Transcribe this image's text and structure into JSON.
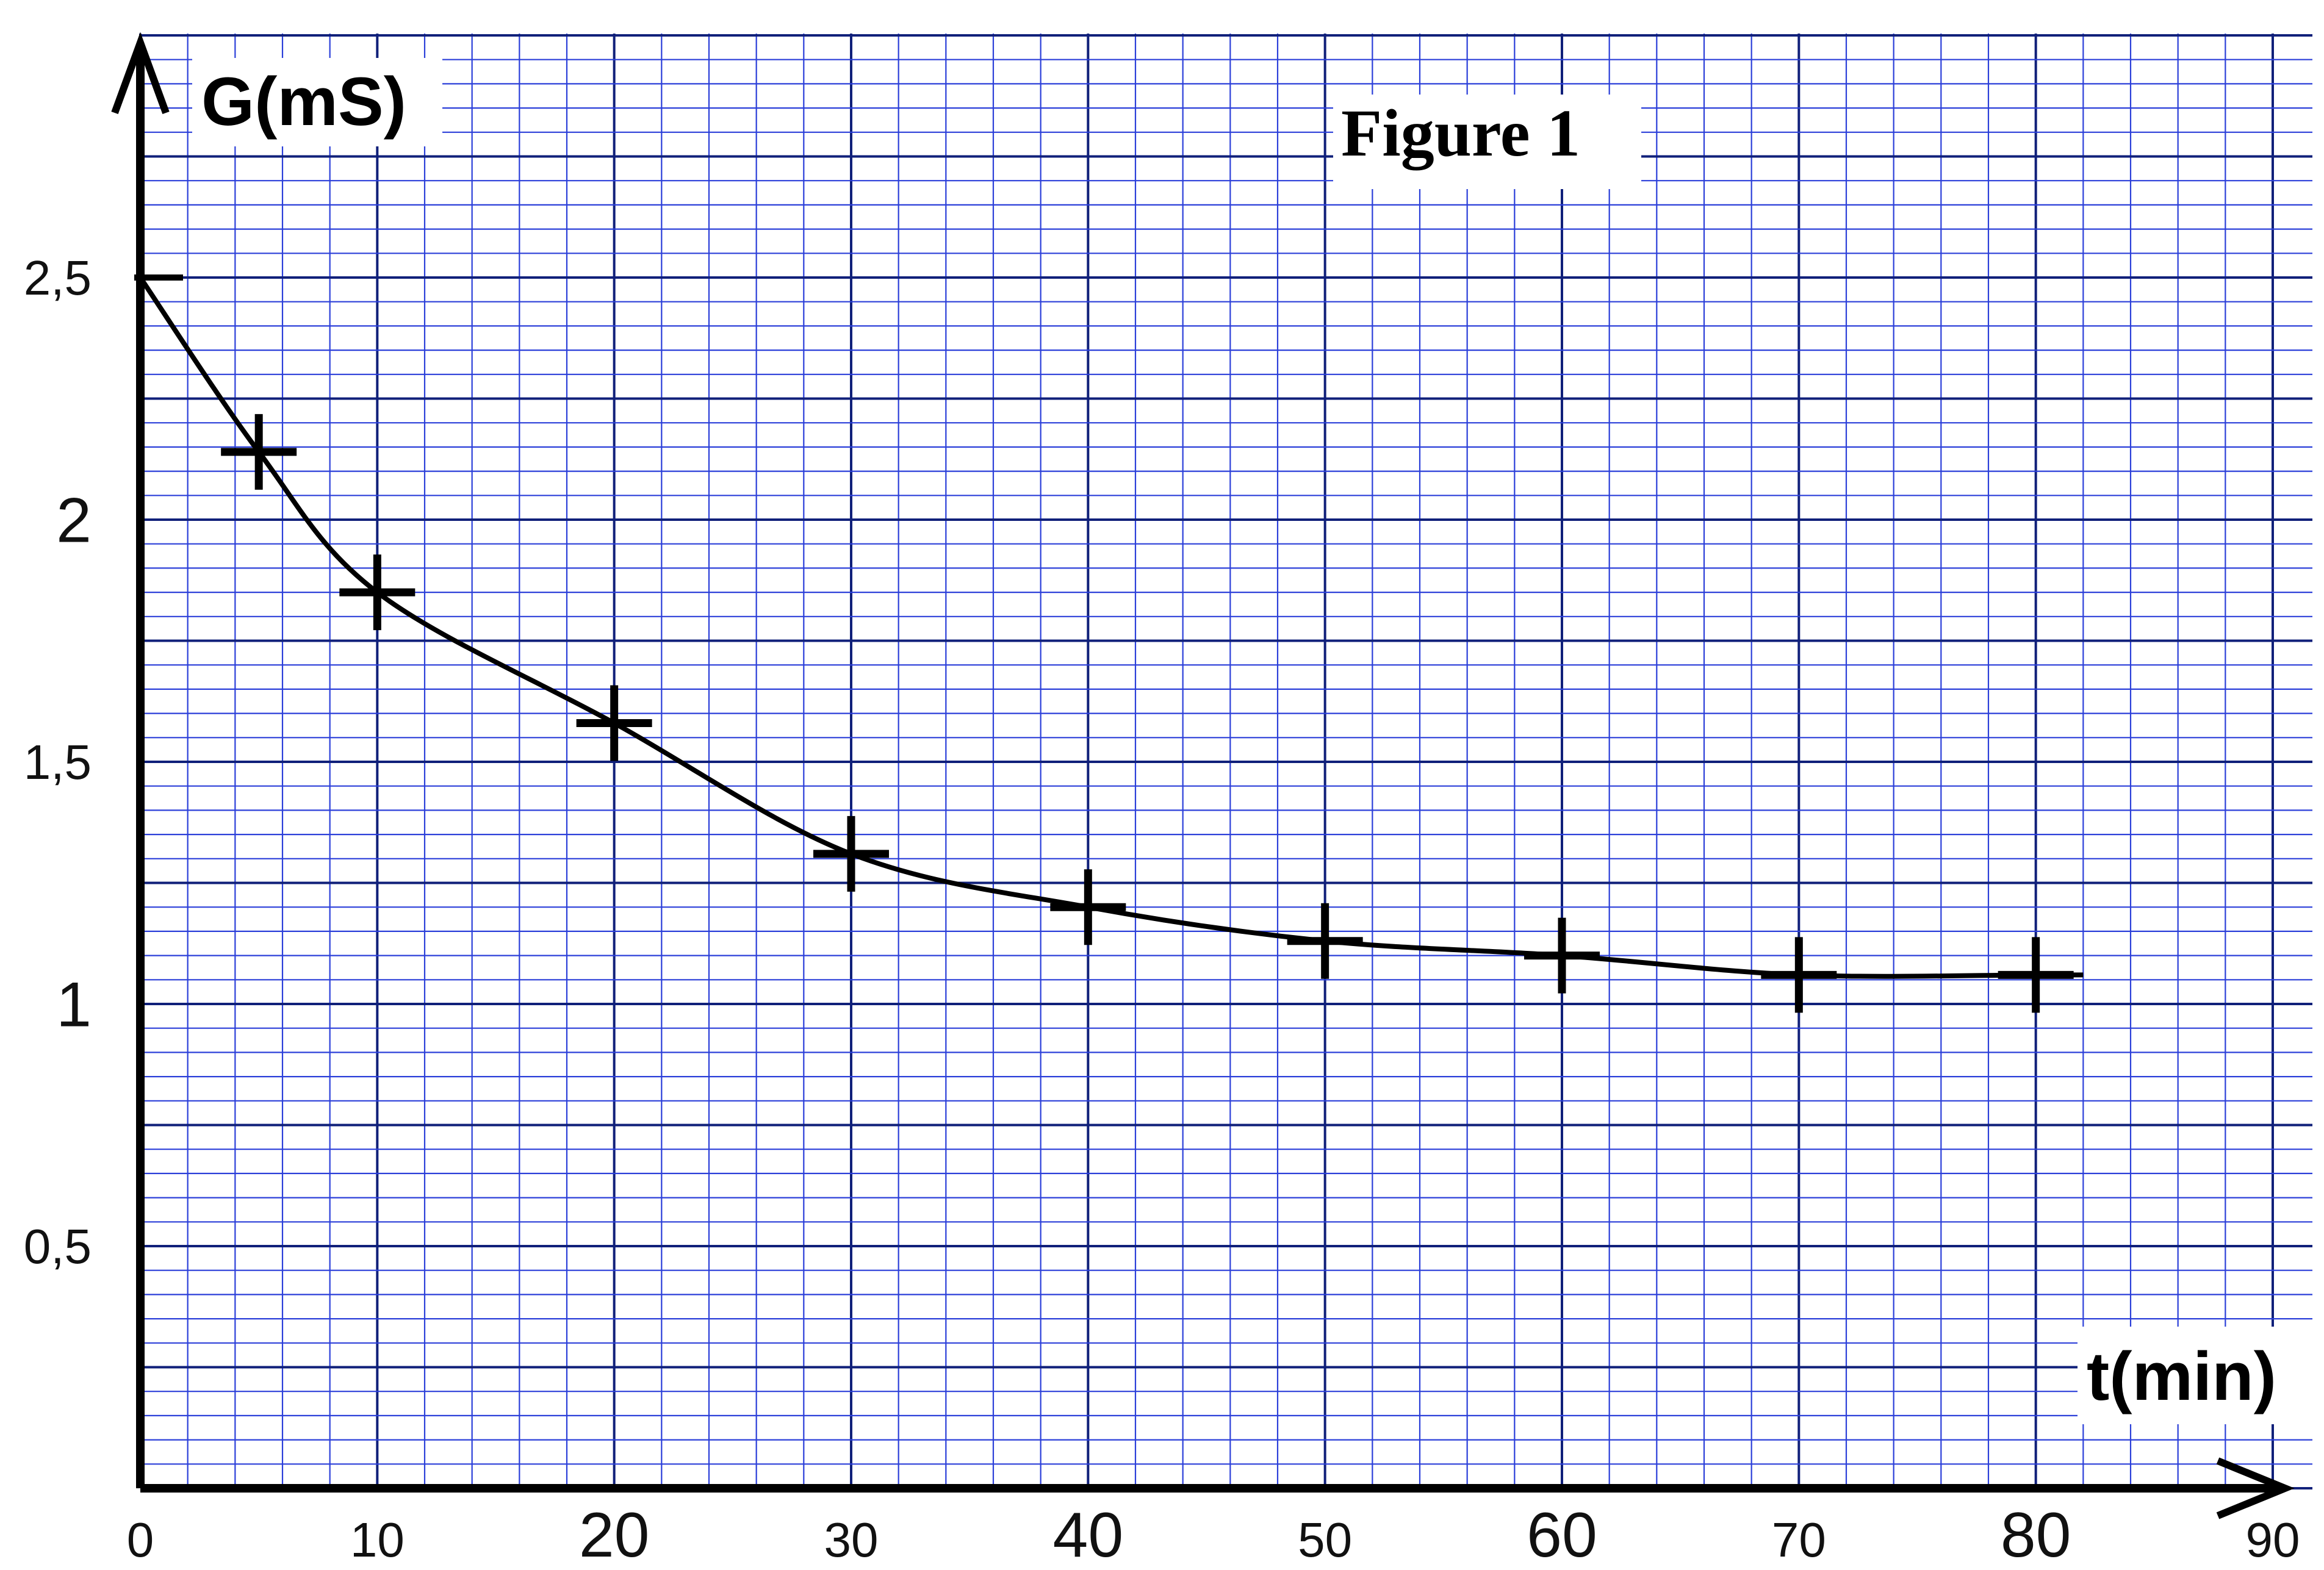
{
  "chart_data": {
    "type": "line",
    "title": "Figure 1",
    "xlabel": "t(min)",
    "ylabel": "G(mS)",
    "xlim": [
      0,
      90
    ],
    "ylim": [
      0,
      2.8
    ],
    "grid": true,
    "colors": {
      "grid_minor": "#2b3fd9",
      "grid_major": "#10207a",
      "axis": "#000000",
      "curve": "#000000",
      "background": "#ffffff"
    },
    "x_ticks": [
      {
        "value": 0,
        "label": "0"
      },
      {
        "value": 10,
        "label": "10"
      },
      {
        "value": 20,
        "label": "20"
      },
      {
        "value": 30,
        "label": "30"
      },
      {
        "value": 40,
        "label": "40"
      },
      {
        "value": 50,
        "label": "50"
      },
      {
        "value": 60,
        "label": "60"
      },
      {
        "value": 70,
        "label": "70"
      },
      {
        "value": 80,
        "label": "80"
      },
      {
        "value": 90,
        "label": "90"
      }
    ],
    "y_ticks": [
      {
        "value": 0.5,
        "label": "0,5"
      },
      {
        "value": 1,
        "label": "1"
      },
      {
        "value": 1.5,
        "label": "1,5"
      },
      {
        "value": 2,
        "label": "2"
      },
      {
        "value": 2.5,
        "label": "2,5"
      }
    ],
    "series": [
      {
        "x": [
          0,
          5,
          10,
          20,
          30,
          40,
          50,
          60,
          70,
          80
        ],
        "y": [
          2.5,
          2.14,
          1.85,
          1.58,
          1.31,
          1.2,
          1.13,
          1.1,
          1.06,
          1.06
        ]
      }
    ]
  }
}
